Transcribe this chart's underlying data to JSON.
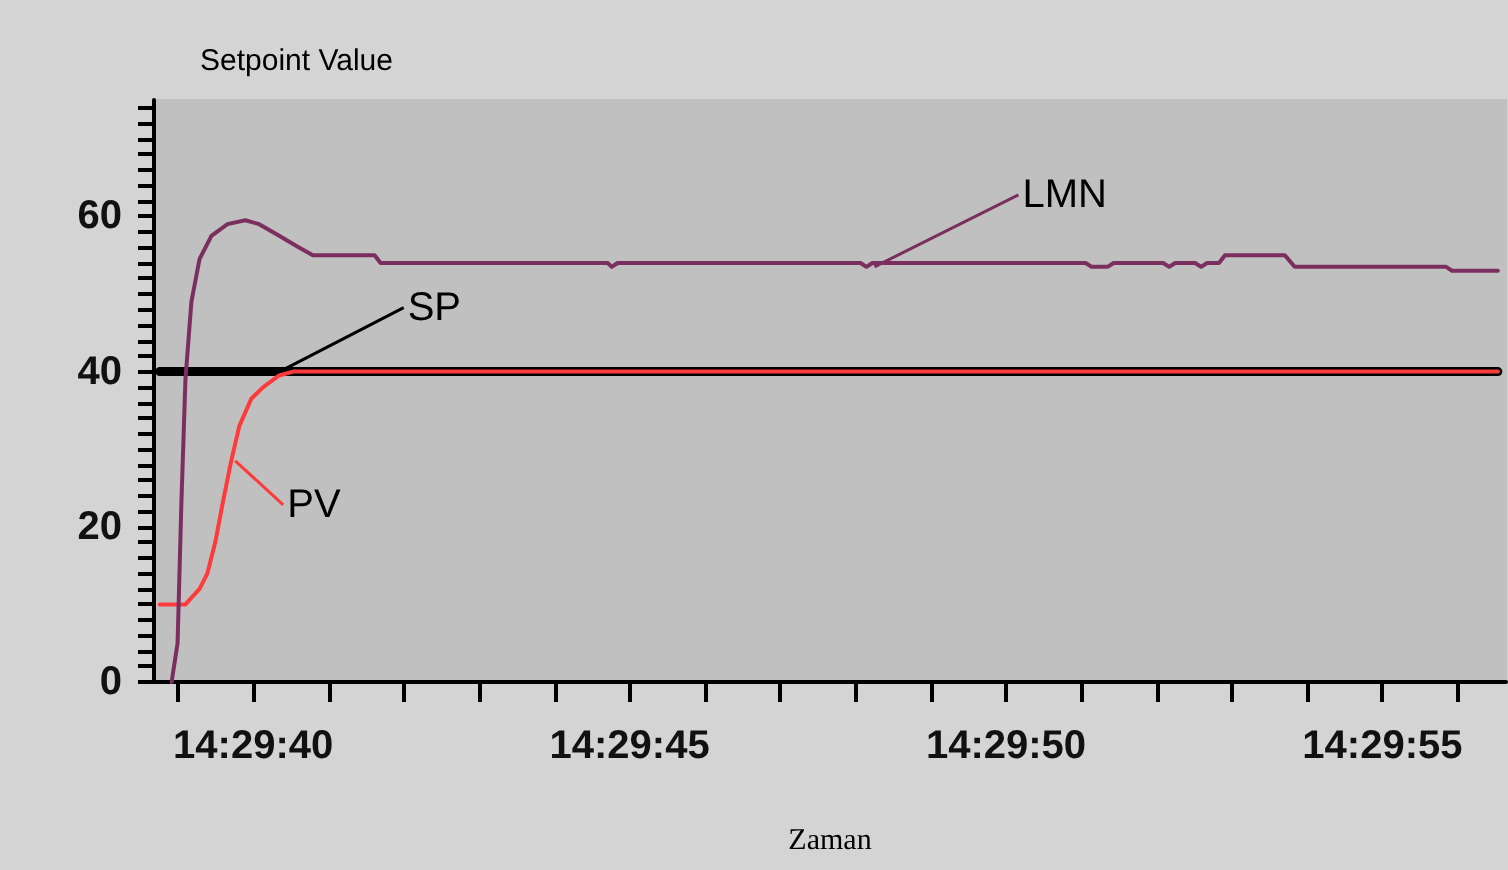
{
  "chart_data": {
    "type": "line",
    "title": "Setpoint Value",
    "xlabel": "Zaman",
    "xlim": [
      14.494078,
      14.499067
    ],
    "ylim": [
      0,
      75
    ],
    "xticks": [
      {
        "value": 14.494167,
        "label": null
      },
      {
        "value": 14.494444,
        "label": "14:29:40"
      },
      {
        "value": 14.494722,
        "label": null
      },
      {
        "value": 14.495,
        "label": null
      },
      {
        "value": 14.495278,
        "label": null
      },
      {
        "value": 14.495556,
        "label": null
      },
      {
        "value": 14.495833,
        "label": "14:29:45"
      },
      {
        "value": 14.496111,
        "label": null
      },
      {
        "value": 14.496389,
        "label": null
      },
      {
        "value": 14.496667,
        "label": null
      },
      {
        "value": 14.496944,
        "label": null
      },
      {
        "value": 14.497222,
        "label": "14:29:50"
      },
      {
        "value": 14.4975,
        "label": null
      },
      {
        "value": 14.497778,
        "label": null
      },
      {
        "value": 14.498056,
        "label": null
      },
      {
        "value": 14.498333,
        "label": null
      },
      {
        "value": 14.498611,
        "label": "14:29:55"
      },
      {
        "value": 14.498889,
        "label": null
      }
    ],
    "yticks": [
      0,
      {
        "value": 2,
        "label": null
      },
      {
        "value": 4,
        "label": null
      },
      {
        "value": 6,
        "label": null
      },
      {
        "value": 8,
        "label": null
      },
      {
        "value": 10,
        "label": null
      },
      {
        "value": 12,
        "label": null
      },
      {
        "value": 14,
        "label": null
      },
      {
        "value": 16,
        "label": null
      },
      {
        "value": 18,
        "label": null
      },
      20,
      {
        "value": 22,
        "label": null
      },
      {
        "value": 24,
        "label": null
      },
      {
        "value": 26,
        "label": null
      },
      {
        "value": 28,
        "label": null
      },
      {
        "value": 30,
        "label": null
      },
      {
        "value": 32,
        "label": null
      },
      {
        "value": 34,
        "label": null
      },
      {
        "value": 36,
        "label": null
      },
      {
        "value": 38,
        "label": null
      },
      40,
      {
        "value": 42,
        "label": null
      },
      {
        "value": 44,
        "label": null
      },
      {
        "value": 46,
        "label": null
      },
      {
        "value": 48,
        "label": null
      },
      {
        "value": 50,
        "label": null
      },
      {
        "value": 52,
        "label": null
      },
      {
        "value": 54,
        "label": null
      },
      {
        "value": 56,
        "label": null
      },
      {
        "value": 58,
        "label": null
      },
      60,
      {
        "value": 62,
        "label": null
      },
      {
        "value": 64,
        "label": null
      },
      {
        "value": 66,
        "label": null
      },
      {
        "value": 68,
        "label": null
      },
      {
        "value": 70,
        "label": null
      },
      {
        "value": 72,
        "label": null
      },
      {
        "value": 74,
        "label": null
      }
    ],
    "grid": false,
    "marker": "none",
    "line_style": "solid",
    "series": [
      {
        "name": "SP",
        "color": "#000000",
        "x": [
          14.494099,
          14.499037
        ],
        "values": [
          40,
          40
        ]
      },
      {
        "name": "PV",
        "color": "#ff3a3a",
        "x": [
          14.494099,
          14.494194,
          14.494246,
          14.494275,
          14.494304,
          14.494334,
          14.494363,
          14.494393,
          14.494437,
          14.494481,
          14.49454,
          14.494591,
          14.499037
        ],
        "values": [
          10,
          10,
          12,
          14,
          18,
          23.5,
          28.5,
          33,
          36.5,
          38,
          39.5,
          40,
          40
        ]
      },
      {
        "name": "LMN",
        "color": "#7b2f5e",
        "x": [
          14.494143,
          14.494165,
          14.494179,
          14.494194,
          14.494216,
          14.494246,
          14.49429,
          14.494349,
          14.494415,
          14.494466,
          14.49454,
          14.494613,
          14.494664,
          14.494892,
          14.494914,
          14.495752,
          14.495767,
          14.495789,
          14.496685,
          14.496707,
          14.496729,
          14.497516,
          14.497538,
          14.497597,
          14.497619,
          14.497802,
          14.497824,
          14.497846,
          14.49792,
          14.497942,
          14.497964,
          14.498008,
          14.49803,
          14.498251,
          14.498287,
          14.498846,
          14.498868,
          14.499037
        ],
        "values": [
          0,
          5,
          23,
          39,
          49,
          54.5,
          57.5,
          59,
          59.5,
          59,
          57.5,
          56,
          55,
          55,
          54,
          54,
          53.5,
          54,
          54,
          53.5,
          54,
          54,
          53.5,
          53.5,
          54,
          54,
          53.5,
          54,
          54,
          53.5,
          54,
          54,
          55,
          55,
          53.5,
          53.5,
          53,
          53
        ]
      }
    ]
  }
}
